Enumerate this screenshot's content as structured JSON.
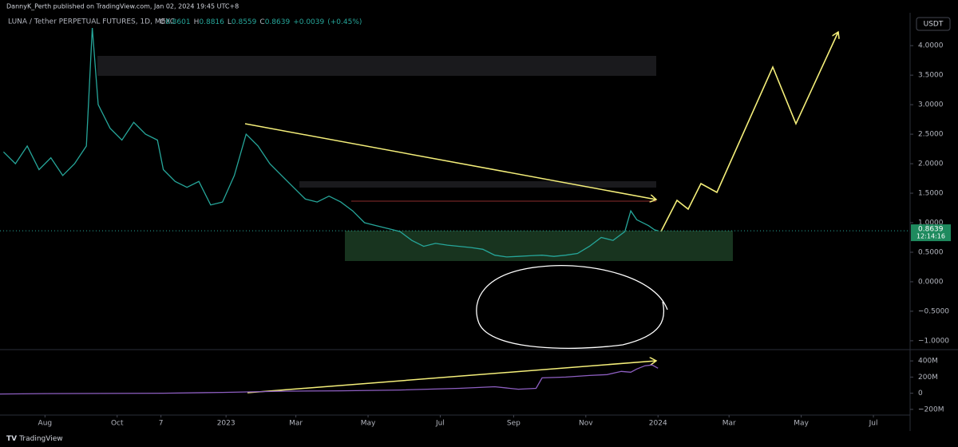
{
  "header": {
    "publisher": "DannyK_Perth published on TradingView.com, Jan 02, 2024 19:45 UTC+8",
    "currency_button": "USDT",
    "footer_logo": "TradingView"
  },
  "chart_data": [
    {
      "type": "line",
      "title": "LUNA / Tether PERPETUAL FUTURES, 1D, MEXC",
      "ohlc_labels": [
        "O",
        "H",
        "L",
        "C"
      ],
      "ohlc": [
        0.8601,
        0.8816,
        0.8559,
        0.8639
      ],
      "change": "+0.0039",
      "change_percent": "(+0.45%)",
      "last_price": 0.8639,
      "countdown": "12:14:16",
      "color": "#26a69a",
      "x": [
        -35,
        -25,
        -15,
        -5,
        5,
        15,
        25,
        35,
        40,
        45,
        55,
        65,
        75,
        85,
        95,
        100,
        110,
        120,
        130,
        140,
        150,
        160,
        170,
        180,
        190,
        200,
        210,
        220,
        230,
        240,
        250,
        260,
        270,
        280,
        290,
        300,
        310,
        320,
        330,
        340,
        350,
        360,
        370,
        380,
        390,
        400,
        410,
        420,
        430,
        440,
        450,
        460,
        470,
        480,
        490,
        495,
        500,
        510,
        515,
        518
      ],
      "values": [
        2.2,
        2.0,
        2.3,
        1.9,
        2.1,
        1.8,
        2.0,
        2.3,
        4.3,
        3.0,
        2.6,
        2.4,
        2.7,
        2.5,
        2.4,
        1.9,
        1.7,
        1.6,
        1.7,
        1.3,
        1.35,
        1.8,
        2.5,
        2.3,
        2.0,
        1.8,
        1.6,
        1.4,
        1.35,
        1.45,
        1.35,
        1.2,
        1.0,
        0.95,
        0.9,
        0.85,
        0.7,
        0.6,
        0.65,
        0.62,
        0.6,
        0.58,
        0.55,
        0.45,
        0.42,
        0.43,
        0.44,
        0.45,
        0.43,
        0.45,
        0.48,
        0.6,
        0.75,
        0.7,
        0.85,
        1.2,
        1.05,
        0.95,
        0.88,
        0.8639
      ],
      "xlim": [
        -38,
        731
      ],
      "ylim": [
        -1.15,
        4.53
      ],
      "yticks": [
        {
          "value": 4,
          "label": "4.0000"
        },
        {
          "value": 3.5,
          "label": "3.5000"
        },
        {
          "value": 3,
          "label": "3.0000"
        },
        {
          "value": 2.5,
          "label": "2.5000"
        },
        {
          "value": 2,
          "label": "2.0000"
        },
        {
          "value": 1.5,
          "label": "1.5000"
        },
        {
          "value": 1,
          "label": "1.0000"
        },
        {
          "value": 0.5,
          "label": "0.5000"
        },
        {
          "value": 0,
          "label": "0.0000"
        },
        {
          "value": -0.5,
          "label": "−0.5000"
        },
        {
          "value": -1,
          "label": "−1.0000"
        }
      ],
      "grid": false
    },
    {
      "type": "line",
      "color": "#8e5fc2",
      "x": [
        -38,
        0,
        100,
        150,
        200,
        250,
        300,
        350,
        380,
        400,
        415,
        420,
        440,
        460,
        475,
        487,
        495,
        500,
        507,
        513,
        518
      ],
      "values": [
        -10000000,
        -5000000,
        0,
        10000000,
        25000000,
        30000000,
        40000000,
        60000000,
        80000000,
        50000000,
        60000000,
        190000000,
        200000000,
        220000000,
        230000000,
        270000000,
        260000000,
        300000000,
        340000000,
        350000000,
        310000000
      ],
      "xlim": [
        -38,
        731
      ],
      "ylim": [
        -320000000,
        520000000
      ],
      "yticks": [
        {
          "value": 400000000,
          "label": "400M"
        },
        {
          "value": 200000000,
          "label": "200M"
        },
        0,
        {
          "value": -200000000,
          "label": "−200M"
        }
      ],
      "xticks": [
        {
          "value": 0,
          "label": "Aug"
        },
        {
          "value": 61,
          "label": "Oct"
        },
        {
          "value": 98,
          "label": "7"
        },
        {
          "value": 153,
          "label": "2023"
        },
        {
          "value": 212,
          "label": "Mar"
        },
        {
          "value": 273,
          "label": "May"
        },
        {
          "value": 334,
          "label": "Jul"
        },
        {
          "value": 396,
          "label": "Sep"
        },
        {
          "value": 457,
          "label": "Nov"
        },
        {
          "value": 518,
          "label": "2024"
        },
        {
          "value": 578,
          "label": "Mar"
        },
        {
          "value": 639,
          "label": "May"
        },
        {
          "value": 700,
          "label": "Jul"
        }
      ],
      "grid": false
    }
  ]
}
